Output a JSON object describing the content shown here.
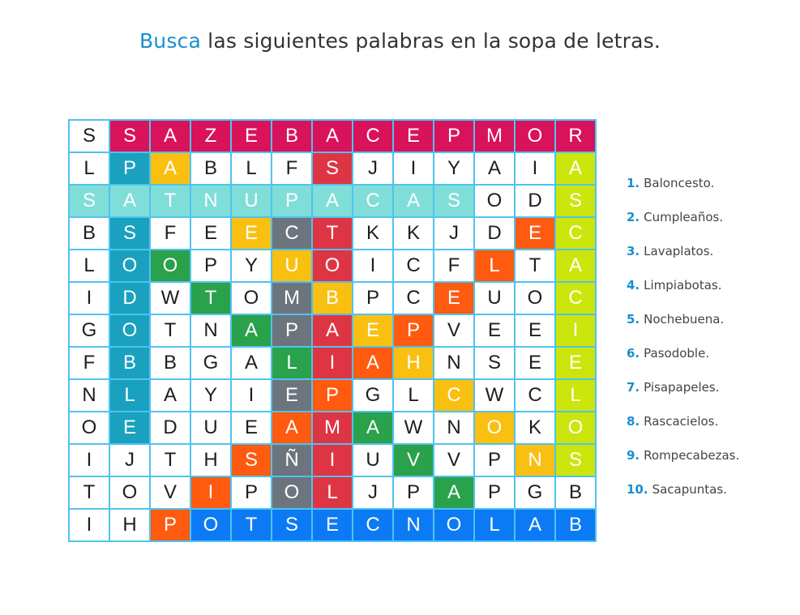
{
  "header": {
    "title_accent": "Busca",
    "title_rest": " las siguientes palabras en la sopa de letras."
  },
  "grid": {
    "rows": [
      [
        "S",
        "S",
        "A",
        "Z",
        "E",
        "B",
        "A",
        "C",
        "E",
        "P",
        "M",
        "O",
        "R"
      ],
      [
        "L",
        "P",
        "A",
        "B",
        "L",
        "F",
        "S",
        "J",
        "I",
        "Y",
        "A",
        "I",
        "A"
      ],
      [
        "S",
        "A",
        "T",
        "N",
        "U",
        "P",
        "A",
        "C",
        "A",
        "S",
        "O",
        "D",
        "S"
      ],
      [
        "B",
        "S",
        "F",
        "E",
        "E",
        "C",
        "T",
        "K",
        "K",
        "J",
        "D",
        "E",
        "C"
      ],
      [
        "L",
        "O",
        "O",
        "P",
        "Y",
        "U",
        "O",
        "I",
        "C",
        "F",
        "L",
        "T",
        "A"
      ],
      [
        "I",
        "D",
        "W",
        "T",
        "O",
        "M",
        "B",
        "P",
        "C",
        "E",
        "U",
        "O",
        "C"
      ],
      [
        "G",
        "O",
        "T",
        "N",
        "A",
        "P",
        "A",
        "E",
        "P",
        "V",
        "E",
        "E",
        "I"
      ],
      [
        "F",
        "B",
        "B",
        "G",
        "A",
        "L",
        "I",
        "A",
        "H",
        "N",
        "S",
        "E",
        "E"
      ],
      [
        "N",
        "L",
        "A",
        "Y",
        "I",
        "E",
        "P",
        "G",
        "L",
        "C",
        "W",
        "C",
        "L"
      ],
      [
        "O",
        "E",
        "D",
        "U",
        "E",
        "A",
        "M",
        "A",
        "W",
        "N",
        "O",
        "K",
        "O"
      ],
      [
        "I",
        "J",
        "T",
        "H",
        "S",
        "Ñ",
        "I",
        "U",
        "V",
        "V",
        "P",
        "N",
        "S"
      ],
      [
        "T",
        "O",
        "V",
        "I",
        "P",
        "O",
        "L",
        "J",
        "P",
        "A",
        "P",
        "G",
        "B"
      ],
      [
        "I",
        "H",
        "P",
        "O",
        "T",
        "S",
        "E",
        "C",
        "N",
        "O",
        "L",
        "A",
        "B"
      ]
    ],
    "colors": {
      "R": "#d8125b",
      "T": "#80ded9",
      "B": "#1aa1bf",
      "Y": "#f9c012",
      "G": "#2aa14b",
      "M": "#6c757d",
      "D": "#de3545",
      "O": "#fe5a10",
      "L": "#cce50c",
      "U": "#0c7af5"
    },
    "highlight_map": [
      [
        ".",
        "R",
        "R",
        "R",
        "R",
        "R",
        "R",
        "R",
        "R",
        "R",
        "R",
        "R",
        "R"
      ],
      [
        ".",
        "B",
        "Y",
        ".",
        ".",
        ".",
        "D",
        ".",
        ".",
        ".",
        ".",
        ".",
        "L"
      ],
      [
        "T",
        "T",
        "T",
        "T",
        "T",
        "T",
        "T",
        "T",
        "T",
        "T",
        ".",
        ".",
        "L"
      ],
      [
        ".",
        "B",
        ".",
        ".",
        "Y",
        "M",
        "D",
        ".",
        ".",
        ".",
        ".",
        "O",
        "L"
      ],
      [
        ".",
        "B",
        "G",
        ".",
        ".",
        "Y",
        "D",
        ".",
        ".",
        ".",
        "O",
        ".",
        "L"
      ],
      [
        ".",
        "B",
        ".",
        "G",
        ".",
        "M",
        "Y",
        ".",
        ".",
        "O",
        ".",
        ".",
        "L"
      ],
      [
        ".",
        "B",
        ".",
        ".",
        "G",
        "M",
        "D",
        "Y",
        "O",
        ".",
        ".",
        ".",
        "L"
      ],
      [
        ".",
        "B",
        ".",
        ".",
        ".",
        "G",
        "D",
        "O",
        "Y",
        ".",
        ".",
        ".",
        "L"
      ],
      [
        ".",
        "B",
        ".",
        ".",
        ".",
        "M",
        "O",
        ".",
        ".",
        "Y",
        ".",
        ".",
        "L"
      ],
      [
        ".",
        "B",
        ".",
        ".",
        ".",
        "O",
        "D",
        "G",
        ".",
        ".",
        "Y",
        ".",
        "L"
      ],
      [
        ".",
        ".",
        ".",
        ".",
        "O",
        "M",
        "D",
        ".",
        "G",
        ".",
        ".",
        "Y",
        "L"
      ],
      [
        ".",
        ".",
        ".",
        "O",
        ".",
        "M",
        "D",
        ".",
        ".",
        "G",
        ".",
        ".",
        "."
      ],
      [
        ".",
        ".",
        "O",
        "U",
        "U",
        "U",
        "U",
        "U",
        "U",
        "U",
        "U",
        "U",
        "U"
      ]
    ]
  },
  "word_list": [
    {
      "num": "1.",
      "word": "Baloncesto."
    },
    {
      "num": "2.",
      "word": "Cumpleaños."
    },
    {
      "num": "3.",
      "word": "Lavaplatos."
    },
    {
      "num": "4.",
      "word": "Limpiabotas."
    },
    {
      "num": "5.",
      "word": "Nochebuena."
    },
    {
      "num": "6.",
      "word": "Pasodoble."
    },
    {
      "num": "7.",
      "word": "Pisapapeles."
    },
    {
      "num": "8.",
      "word": "Rascacielos."
    },
    {
      "num": "9.",
      "word": "Rompecabezas."
    },
    {
      "num": "10.",
      "word": "Sacapuntas."
    }
  ]
}
